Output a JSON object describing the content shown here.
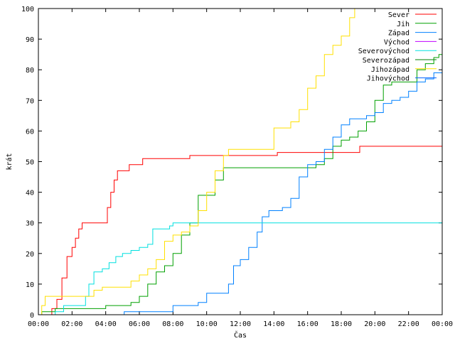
{
  "chart_data": {
    "type": "line",
    "xlabel": "Čas",
    "ylabel": "krát",
    "xlim": [
      0,
      24
    ],
    "ylim": [
      0,
      100
    ],
    "grid": false,
    "legend_position": "top-right",
    "x_ticks": [
      {
        "value": 0,
        "label": "00:00"
      },
      {
        "value": 2,
        "label": "02:00"
      },
      {
        "value": 4,
        "label": "04:00"
      },
      {
        "value": 6,
        "label": "06:00"
      },
      {
        "value": 8,
        "label": "08:00"
      },
      {
        "value": 10,
        "label": "10:00"
      },
      {
        "value": 12,
        "label": "12:00"
      },
      {
        "value": 14,
        "label": "14:00"
      },
      {
        "value": 16,
        "label": "16:00"
      },
      {
        "value": 18,
        "label": "18:00"
      },
      {
        "value": 20,
        "label": "20:00"
      },
      {
        "value": 22,
        "label": "22:00"
      },
      {
        "value": 24,
        "label": "00:00"
      }
    ],
    "y_ticks": [
      {
        "value": 0,
        "label": "0"
      },
      {
        "value": 10,
        "label": "10"
      },
      {
        "value": 20,
        "label": "20"
      },
      {
        "value": 30,
        "label": "30"
      },
      {
        "value": 40,
        "label": "40"
      },
      {
        "value": 50,
        "label": "50"
      },
      {
        "value": 60,
        "label": "60"
      },
      {
        "value": 70,
        "label": "70"
      },
      {
        "value": 80,
        "label": "80"
      },
      {
        "value": 90,
        "label": "90"
      },
      {
        "value": 100,
        "label": "100"
      }
    ],
    "series": [
      {
        "name": "Sever",
        "color": "#ff0000",
        "points": [
          [
            0,
            0
          ],
          [
            0.8,
            2
          ],
          [
            1.1,
            5
          ],
          [
            1.4,
            12
          ],
          [
            1.7,
            19
          ],
          [
            2.0,
            22
          ],
          [
            2.2,
            25
          ],
          [
            2.4,
            28
          ],
          [
            2.6,
            30
          ],
          [
            3.9,
            30
          ],
          [
            4.1,
            35
          ],
          [
            4.3,
            40
          ],
          [
            4.5,
            44
          ],
          [
            4.7,
            47
          ],
          [
            5.2,
            47
          ],
          [
            5.4,
            49
          ],
          [
            6.0,
            49
          ],
          [
            6.2,
            51
          ],
          [
            8.5,
            51
          ],
          [
            9.0,
            52
          ],
          [
            13.5,
            52
          ],
          [
            14.2,
            53
          ],
          [
            17.5,
            53
          ],
          [
            19.0,
            53
          ],
          [
            19.1,
            55
          ],
          [
            24,
            55
          ]
        ]
      },
      {
        "name": "Jih",
        "color": "#00a000",
        "points": [
          [
            0,
            0
          ],
          [
            0.2,
            1
          ],
          [
            1.0,
            2
          ],
          [
            3.5,
            2
          ],
          [
            4.0,
            3
          ],
          [
            5.0,
            3
          ],
          [
            5.5,
            4
          ],
          [
            6.0,
            6
          ],
          [
            6.5,
            10
          ],
          [
            7.0,
            14
          ],
          [
            7.5,
            16
          ],
          [
            8.0,
            20
          ],
          [
            8.5,
            26
          ],
          [
            9.0,
            30
          ],
          [
            9.5,
            39
          ],
          [
            10.0,
            39
          ],
          [
            10.5,
            44
          ],
          [
            11.0,
            48
          ],
          [
            14.0,
            48
          ],
          [
            15.0,
            48
          ],
          [
            16.5,
            49
          ],
          [
            17.0,
            51
          ],
          [
            17.5,
            55
          ],
          [
            18.0,
            57
          ],
          [
            18.5,
            58
          ],
          [
            19.0,
            60
          ],
          [
            19.5,
            63
          ],
          [
            20.0,
            70
          ],
          [
            20.5,
            75
          ],
          [
            21.0,
            76
          ],
          [
            22.0,
            76
          ],
          [
            22.5,
            80
          ],
          [
            23.0,
            82
          ],
          [
            23.5,
            84
          ],
          [
            23.8,
            85
          ],
          [
            24,
            86
          ]
        ]
      },
      {
        "name": "Západ",
        "color": "#0080ff",
        "points": [
          [
            0,
            0
          ],
          [
            5.0,
            0
          ],
          [
            5.1,
            1
          ],
          [
            7.5,
            1
          ],
          [
            8.0,
            3
          ],
          [
            9.5,
            4
          ],
          [
            10.0,
            7
          ],
          [
            11.0,
            7
          ],
          [
            11.3,
            10
          ],
          [
            11.6,
            16
          ],
          [
            12.0,
            18
          ],
          [
            12.5,
            22
          ],
          [
            13.0,
            27
          ],
          [
            13.3,
            32
          ],
          [
            13.7,
            34
          ],
          [
            14.5,
            35
          ],
          [
            15.0,
            38
          ],
          [
            15.5,
            45
          ],
          [
            16.0,
            49
          ],
          [
            16.5,
            50
          ],
          [
            17.0,
            54
          ],
          [
            17.5,
            58
          ],
          [
            18.0,
            62
          ],
          [
            18.5,
            64
          ],
          [
            19.0,
            64
          ],
          [
            19.5,
            65
          ],
          [
            20.0,
            66
          ],
          [
            20.5,
            69
          ],
          [
            21.0,
            70
          ],
          [
            21.5,
            71
          ],
          [
            22.0,
            73
          ],
          [
            22.5,
            76
          ],
          [
            23.0,
            77
          ],
          [
            23.5,
            79
          ],
          [
            24,
            81
          ]
        ]
      },
      {
        "name": "Východ",
        "color": "#c000ff",
        "points": []
      },
      {
        "name": "Severovýchod",
        "color": "#00e0e0",
        "points": [
          [
            0,
            0
          ],
          [
            1.0,
            1
          ],
          [
            1.5,
            3
          ],
          [
            2.5,
            3
          ],
          [
            2.8,
            6
          ],
          [
            3.0,
            10
          ],
          [
            3.3,
            14
          ],
          [
            3.8,
            15
          ],
          [
            4.2,
            17
          ],
          [
            4.6,
            19
          ],
          [
            5.0,
            20
          ],
          [
            5.5,
            21
          ],
          [
            6.0,
            22
          ],
          [
            6.5,
            23
          ],
          [
            6.8,
            28
          ],
          [
            7.5,
            28
          ],
          [
            7.8,
            29
          ],
          [
            8.0,
            30
          ],
          [
            24,
            30
          ]
        ]
      },
      {
        "name": "Severozápad",
        "color": "#008000",
        "points": [
          [
            0,
            0
          ],
          [
            24,
            0
          ]
        ]
      },
      {
        "name": "Jihozápad",
        "color": "#ffe000",
        "points": [
          [
            0,
            0
          ],
          [
            0.2,
            3
          ],
          [
            0.4,
            6
          ],
          [
            3.0,
            6
          ],
          [
            3.3,
            8
          ],
          [
            3.8,
            9
          ],
          [
            5.0,
            9
          ],
          [
            5.5,
            11
          ],
          [
            6.0,
            13
          ],
          [
            6.5,
            15
          ],
          [
            7.0,
            18
          ],
          [
            7.5,
            24
          ],
          [
            8.0,
            26
          ],
          [
            8.5,
            27
          ],
          [
            9.0,
            29
          ],
          [
            9.5,
            34
          ],
          [
            10.0,
            40
          ],
          [
            10.5,
            47
          ],
          [
            11.0,
            52
          ],
          [
            11.3,
            54
          ],
          [
            12.0,
            54
          ],
          [
            13.5,
            54
          ],
          [
            14.0,
            61
          ],
          [
            15.0,
            63
          ],
          [
            15.5,
            67
          ],
          [
            16.0,
            74
          ],
          [
            16.5,
            78
          ],
          [
            17.0,
            85
          ],
          [
            17.5,
            88
          ],
          [
            18.0,
            91
          ],
          [
            18.5,
            97
          ],
          [
            18.8,
            100
          ],
          [
            19.0,
            100
          ]
        ]
      },
      {
        "name": "Jihovýchod",
        "color": "#0060ff",
        "points": [
          [
            0,
            0
          ],
          [
            24,
            0
          ]
        ]
      }
    ]
  }
}
